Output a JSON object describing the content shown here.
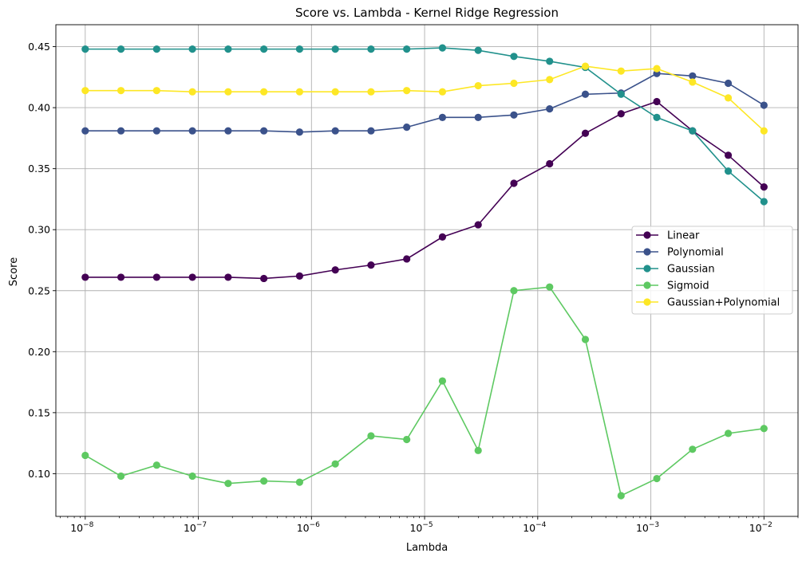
{
  "chart_data": {
    "type": "line",
    "title": "Score vs. Lambda - Kernel Ridge Regression",
    "xlabel": "Lambda",
    "ylabel": "Score",
    "x_scale": "log",
    "xlim": [
      5.5e-09,
      0.02
    ],
    "ylim": [
      0.065,
      0.468
    ],
    "x_ticks": [
      1e-08,
      1e-07,
      1e-06,
      1e-05,
      0.0001,
      0.001,
      0.01
    ],
    "x_tick_labels": [
      {
        "base": "10",
        "exp": "−8"
      },
      {
        "base": "10",
        "exp": "−7"
      },
      {
        "base": "10",
        "exp": "−6"
      },
      {
        "base": "10",
        "exp": "−5"
      },
      {
        "base": "10",
        "exp": "−4"
      },
      {
        "base": "10",
        "exp": "−3"
      },
      {
        "base": "10",
        "exp": "−2"
      }
    ],
    "y_ticks": [
      0.1,
      0.15,
      0.2,
      0.25,
      0.3,
      0.35,
      0.4,
      0.45
    ],
    "y_tick_labels": [
      "0.10",
      "0.15",
      "0.20",
      "0.25",
      "0.30",
      "0.35",
      "0.40",
      "0.45"
    ],
    "grid": true,
    "legend_position": "center-right",
    "x": [
      1e-08,
      2.069e-08,
      4.281e-08,
      8.859e-08,
      1.833e-07,
      3.793e-07,
      7.848e-07,
      1.624e-06,
      3.36e-06,
      6.952e-06,
      1.438e-05,
      2.976e-05,
      6.158e-05,
      0.0001274,
      0.0002637,
      0.0005456,
      0.001129,
      0.002336,
      0.004833,
      0.01
    ],
    "series": [
      {
        "name": "Linear",
        "color": "#440154",
        "values": [
          0.261,
          0.261,
          0.261,
          0.261,
          0.261,
          0.26,
          0.262,
          0.267,
          0.271,
          0.276,
          0.294,
          0.304,
          0.338,
          0.354,
          0.379,
          0.395,
          0.405,
          0.381,
          0.361,
          0.335
        ]
      },
      {
        "name": "Polynomial",
        "color": "#3b528b",
        "values": [
          0.381,
          0.381,
          0.381,
          0.381,
          0.381,
          0.381,
          0.38,
          0.381,
          0.381,
          0.384,
          0.392,
          0.392,
          0.394,
          0.399,
          0.411,
          0.412,
          0.428,
          0.426,
          0.42,
          0.402
        ]
      },
      {
        "name": "Gaussian",
        "color": "#21918c",
        "values": [
          0.448,
          0.448,
          0.448,
          0.448,
          0.448,
          0.448,
          0.448,
          0.448,
          0.448,
          0.448,
          0.449,
          0.447,
          0.442,
          0.438,
          0.433,
          0.411,
          0.392,
          0.381,
          0.348,
          0.323
        ]
      },
      {
        "name": "Sigmoid",
        "color": "#5ec962",
        "values": [
          0.115,
          0.098,
          0.107,
          0.098,
          0.092,
          0.094,
          0.093,
          0.108,
          0.131,
          0.128,
          0.176,
          0.119,
          0.25,
          0.253,
          0.21,
          0.082,
          0.096,
          0.12,
          0.133,
          0.137
        ]
      },
      {
        "name": "Gaussian+Polynomial",
        "color": "#fde725",
        "values": [
          0.414,
          0.414,
          0.414,
          0.413,
          0.413,
          0.413,
          0.413,
          0.413,
          0.413,
          0.414,
          0.413,
          0.418,
          0.42,
          0.423,
          0.434,
          0.43,
          0.432,
          0.421,
          0.408,
          0.381
        ]
      }
    ]
  }
}
